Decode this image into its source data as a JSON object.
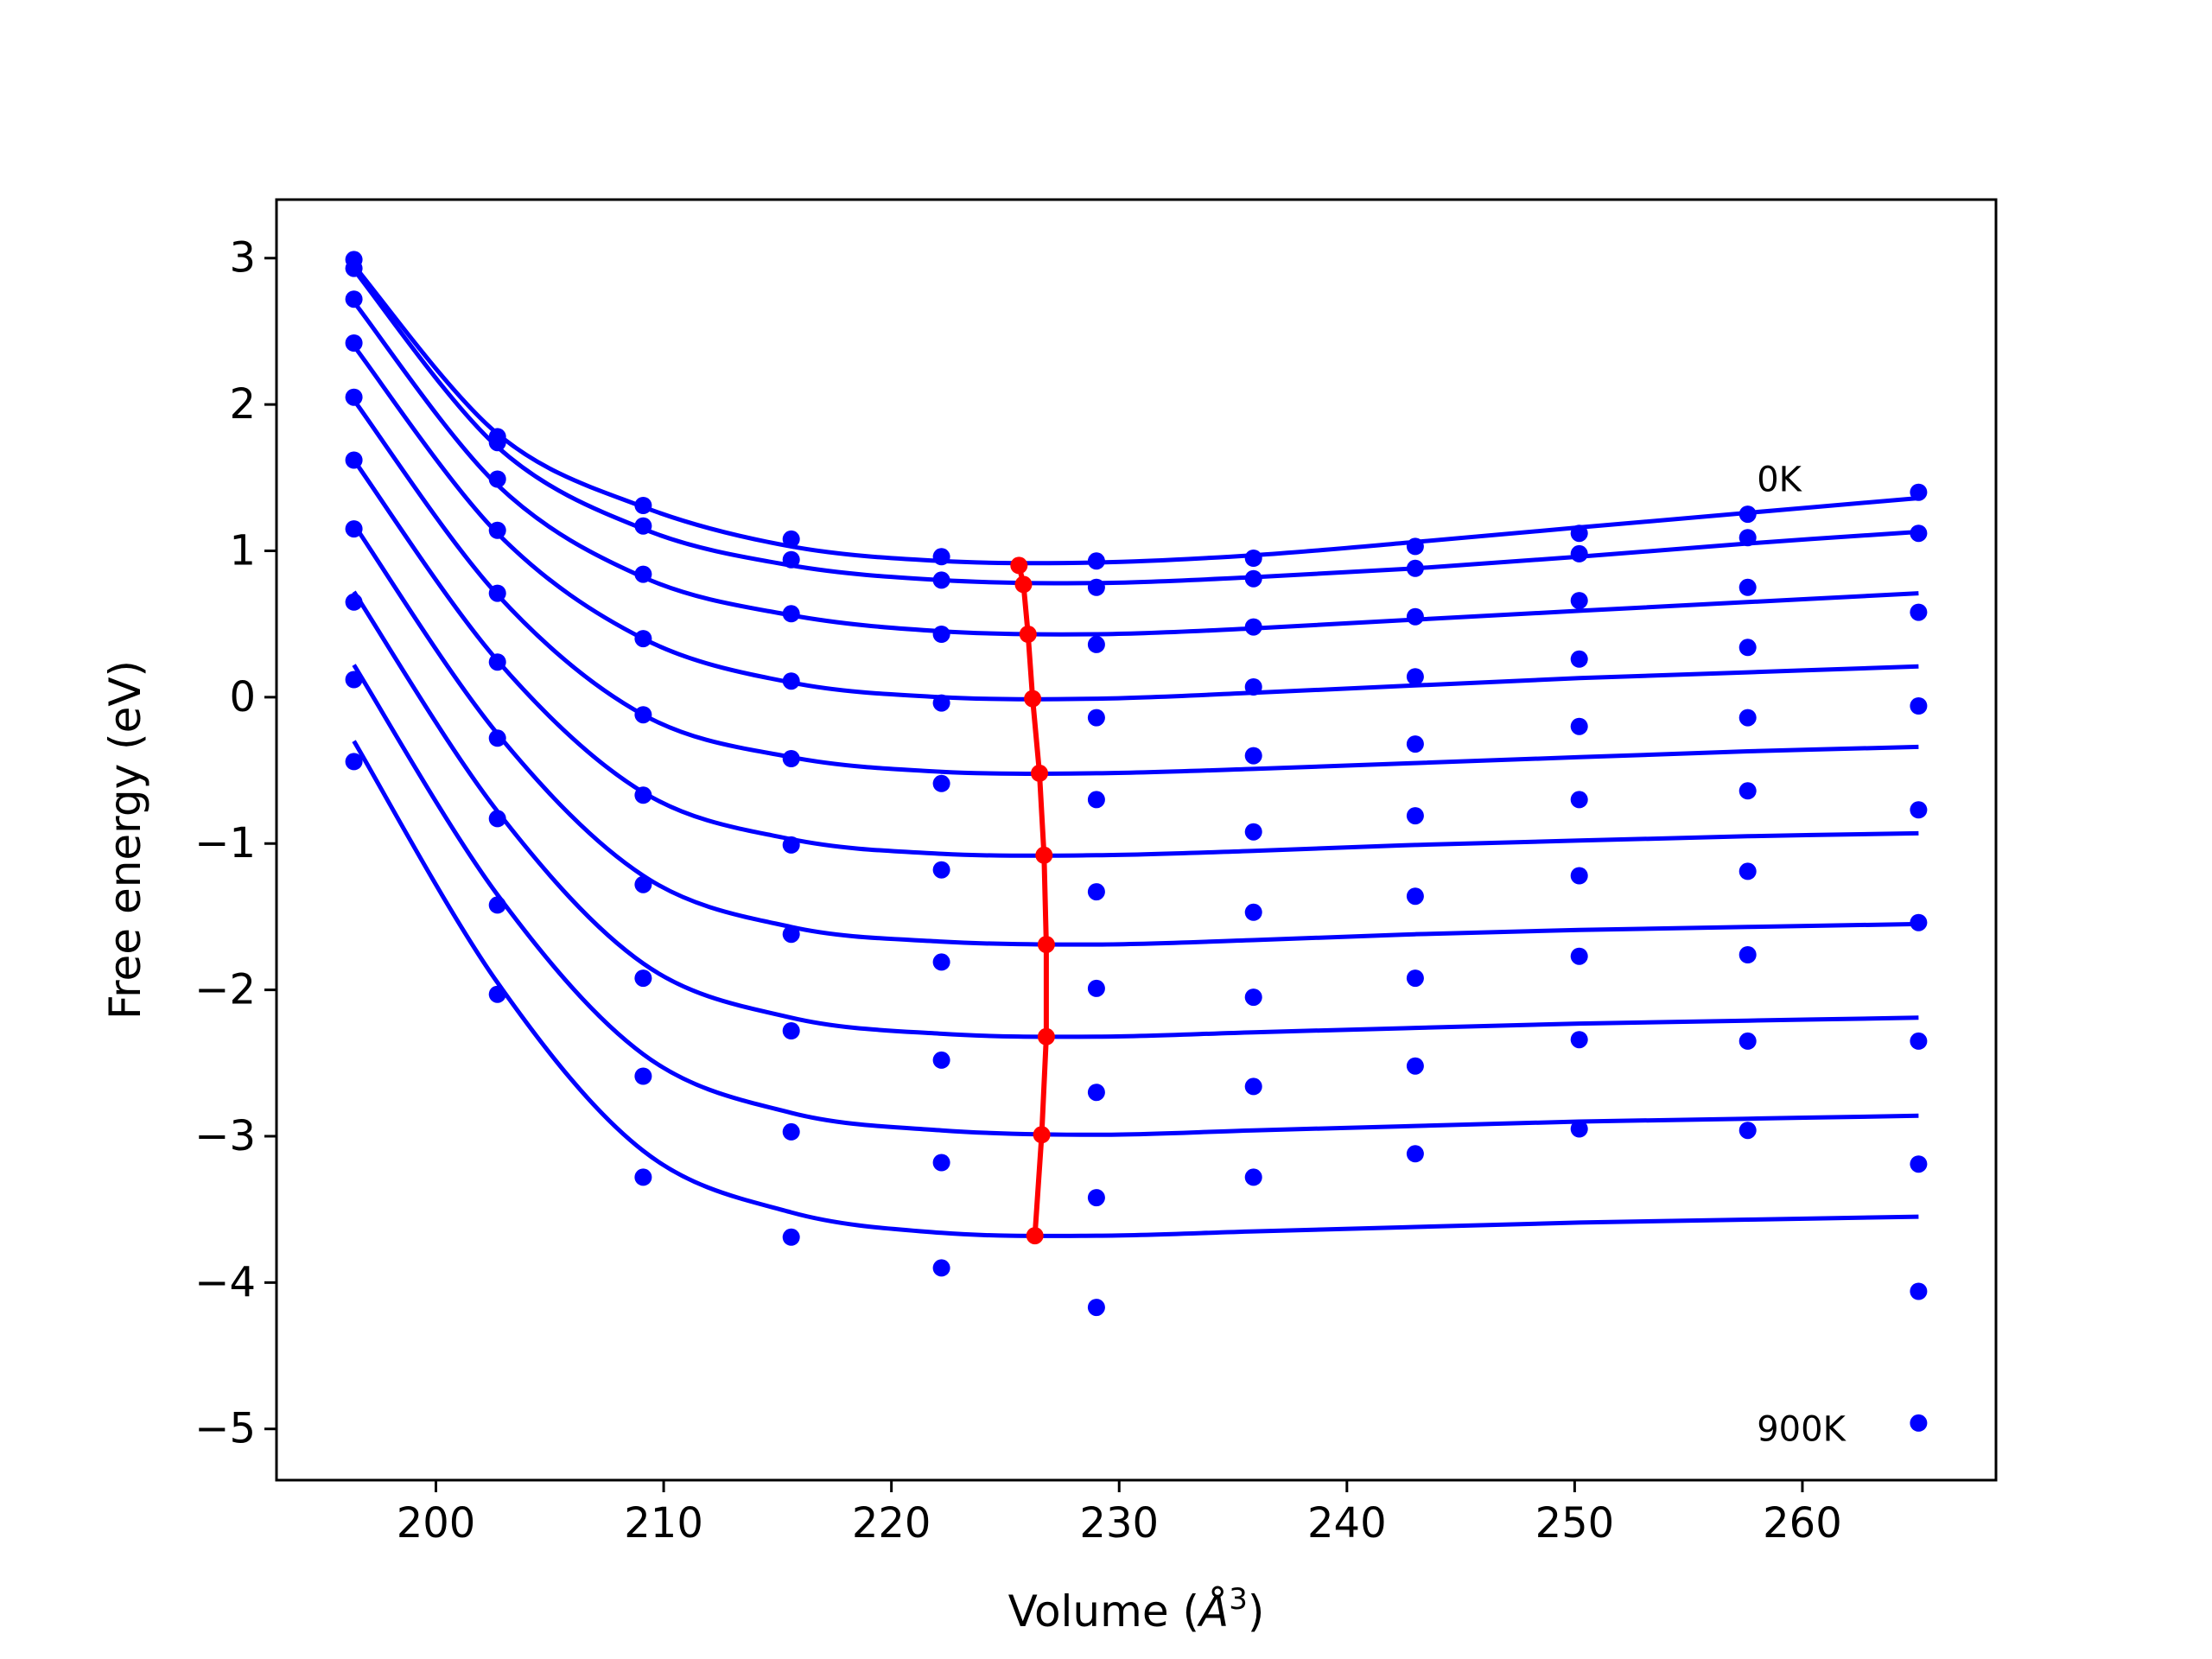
{
  "chart_data": {
    "type": "line",
    "title": "",
    "xlabel": "Volume (",
    "xlabel_symbol": "Å",
    "xlabel_sup": "3",
    "xlabel_close": ")",
    "ylabel": "Free energy (eV)",
    "xlim": [
      193.0,
      268.5
    ],
    "ylim": [
      -5.35,
      3.4
    ],
    "xticks": [
      200,
      210,
      220,
      230,
      240,
      250,
      260
    ],
    "yticks": [
      3,
      2,
      1,
      0,
      -1,
      -2,
      -3,
      -4,
      -5
    ],
    "ytick_labels": [
      "3",
      "2",
      "1",
      "0",
      "−1",
      "−2",
      "−3",
      "−4",
      "−5"
    ],
    "annotations": [
      {
        "text": "0K",
        "x": 258.0,
        "y": 1.49
      },
      {
        "text": "900K",
        "x": 258.0,
        "y": -5.0
      }
    ],
    "colors": {
      "fit": "#0000ff",
      "points": "#0000ff",
      "minima": "#ff0000"
    },
    "volumes": [
      196.4,
      202.7,
      209.1,
      215.6,
      222.2,
      229.0,
      235.9,
      243.0,
      250.2,
      257.6,
      265.1
    ],
    "points": [
      [
        2.99,
        1.78,
        1.31,
        1.08,
        0.96,
        0.93,
        0.95,
        1.03,
        1.12,
        1.25,
        1.4
      ],
      [
        2.93,
        1.74,
        1.17,
        0.94,
        0.8,
        0.75,
        0.81,
        0.88,
        0.98,
        1.09,
        1.12
      ],
      [
        2.72,
        1.49,
        0.84,
        0.57,
        0.43,
        0.36,
        0.48,
        0.55,
        0.66,
        0.75,
        0.58
      ],
      [
        2.42,
        1.14,
        0.4,
        0.11,
        -0.04,
        -0.14,
        0.07,
        0.14,
        0.26,
        0.34,
        -0.06
      ],
      [
        2.05,
        0.71,
        -0.12,
        -0.42,
        -0.59,
        -0.7,
        -0.4,
        -0.32,
        -0.2,
        -0.14,
        -0.77
      ],
      [
        1.62,
        0.24,
        -0.67,
        -1.01,
        -1.18,
        -1.33,
        -0.92,
        -0.81,
        -0.7,
        -0.64,
        -1.54
      ],
      [
        1.15,
        -0.28,
        -1.28,
        -1.62,
        -1.81,
        -1.99,
        -1.47,
        -1.36,
        -1.22,
        -1.19,
        -2.35
      ],
      [
        0.65,
        -0.83,
        -1.92,
        -2.28,
        -2.48,
        -2.7,
        -2.05,
        -1.92,
        -1.77,
        -1.76,
        -3.19
      ],
      [
        0.12,
        -1.42,
        -2.59,
        -2.97,
        -3.18,
        -3.42,
        -2.66,
        -2.52,
        -2.34,
        -2.35,
        -4.06
      ],
      [
        -0.44,
        -2.03,
        -3.28,
        -3.69,
        -3.9,
        -4.17,
        -3.28,
        -3.12,
        -2.95,
        -2.96,
        -4.96
      ]
    ],
    "series": [
      {
        "values": [
          {
            "x": 196.4,
            "y": 2.95
          },
          {
            "x": 202.7,
            "y": 1.8
          },
          {
            "x": 209.1,
            "y": 1.3
          },
          {
            "x": 215.6,
            "y": 1.03
          },
          {
            "x": 222.2,
            "y": 0.93
          },
          {
            "x": 229.0,
            "y": 0.92
          },
          {
            "x": 235.9,
            "y": 0.97
          },
          {
            "x": 243.0,
            "y": 1.06
          },
          {
            "x": 250.2,
            "y": 1.16
          },
          {
            "x": 257.6,
            "y": 1.26
          },
          {
            "x": 265.1,
            "y": 1.36
          }
        ]
      },
      {
        "values": [
          {
            "x": 196.4,
            "y": 2.92
          },
          {
            "x": 202.7,
            "y": 1.71
          },
          {
            "x": 209.1,
            "y": 1.15
          },
          {
            "x": 215.6,
            "y": 0.9
          },
          {
            "x": 222.2,
            "y": 0.8
          },
          {
            "x": 229.0,
            "y": 0.78
          },
          {
            "x": 235.9,
            "y": 0.82
          },
          {
            "x": 243.0,
            "y": 0.88
          },
          {
            "x": 250.2,
            "y": 0.96
          },
          {
            "x": 257.6,
            "y": 1.05
          },
          {
            "x": 265.1,
            "y": 1.13
          }
        ]
      },
      {
        "values": [
          {
            "x": 196.4,
            "y": 2.7
          },
          {
            "x": 202.7,
            "y": 1.45
          },
          {
            "x": 209.1,
            "y": 0.82
          },
          {
            "x": 215.6,
            "y": 0.56
          },
          {
            "x": 222.2,
            "y": 0.45
          },
          {
            "x": 229.0,
            "y": 0.43
          },
          {
            "x": 235.9,
            "y": 0.47
          },
          {
            "x": 243.0,
            "y": 0.53
          },
          {
            "x": 250.2,
            "y": 0.59
          },
          {
            "x": 257.6,
            "y": 0.65
          },
          {
            "x": 265.1,
            "y": 0.71
          }
        ]
      },
      {
        "values": [
          {
            "x": 196.4,
            "y": 2.4
          },
          {
            "x": 202.7,
            "y": 1.12
          },
          {
            "x": 209.1,
            "y": 0.4
          },
          {
            "x": 215.6,
            "y": 0.1
          },
          {
            "x": 222.2,
            "y": 0.0
          },
          {
            "x": 229.0,
            "y": -0.01
          },
          {
            "x": 235.9,
            "y": 0.03
          },
          {
            "x": 243.0,
            "y": 0.08
          },
          {
            "x": 250.2,
            "y": 0.13
          },
          {
            "x": 257.6,
            "y": 0.17
          },
          {
            "x": 265.1,
            "y": 0.21
          }
        ]
      },
      {
        "values": [
          {
            "x": 196.4,
            "y": 2.03
          },
          {
            "x": 202.7,
            "y": 0.7
          },
          {
            "x": 209.1,
            "y": -0.12
          },
          {
            "x": 215.6,
            "y": -0.41
          },
          {
            "x": 222.2,
            "y": -0.51
          },
          {
            "x": 229.0,
            "y": -0.52
          },
          {
            "x": 235.9,
            "y": -0.49
          },
          {
            "x": 243.0,
            "y": -0.45
          },
          {
            "x": 250.2,
            "y": -0.41
          },
          {
            "x": 257.6,
            "y": -0.37
          },
          {
            "x": 265.1,
            "y": -0.34
          }
        ]
      },
      {
        "values": [
          {
            "x": 196.4,
            "y": 1.62
          },
          {
            "x": 202.7,
            "y": 0.25
          },
          {
            "x": 209.1,
            "y": -0.65
          },
          {
            "x": 215.6,
            "y": -0.97
          },
          {
            "x": 222.2,
            "y": -1.07
          },
          {
            "x": 229.0,
            "y": -1.08
          },
          {
            "x": 235.9,
            "y": -1.05
          },
          {
            "x": 243.0,
            "y": -1.01
          },
          {
            "x": 250.2,
            "y": -0.98
          },
          {
            "x": 257.6,
            "y": -0.95
          },
          {
            "x": 265.1,
            "y": -0.93
          }
        ]
      },
      {
        "values": [
          {
            "x": 196.4,
            "y": 1.18
          },
          {
            "x": 202.7,
            "y": -0.25
          },
          {
            "x": 209.1,
            "y": -1.22
          },
          {
            "x": 215.6,
            "y": -1.57
          },
          {
            "x": 222.2,
            "y": -1.67
          },
          {
            "x": 229.0,
            "y": -1.69
          },
          {
            "x": 235.9,
            "y": -1.66
          },
          {
            "x": 243.0,
            "y": -1.62
          },
          {
            "x": 250.2,
            "y": -1.59
          },
          {
            "x": 257.6,
            "y": -1.57
          },
          {
            "x": 265.1,
            "y": -1.55
          }
        ]
      },
      {
        "values": [
          {
            "x": 196.4,
            "y": 0.72
          },
          {
            "x": 202.7,
            "y": -0.78
          },
          {
            "x": 209.1,
            "y": -1.82
          },
          {
            "x": 215.6,
            "y": -2.19
          },
          {
            "x": 222.2,
            "y": -2.3
          },
          {
            "x": 229.0,
            "y": -2.32
          },
          {
            "x": 235.9,
            "y": -2.29
          },
          {
            "x": 243.0,
            "y": -2.26
          },
          {
            "x": 250.2,
            "y": -2.23
          },
          {
            "x": 257.6,
            "y": -2.21
          },
          {
            "x": 265.1,
            "y": -2.19
          }
        ]
      },
      {
        "values": [
          {
            "x": 196.4,
            "y": 0.22
          },
          {
            "x": 202.7,
            "y": -1.35
          },
          {
            "x": 209.1,
            "y": -2.44
          },
          {
            "x": 215.6,
            "y": -2.84
          },
          {
            "x": 222.2,
            "y": -2.96
          },
          {
            "x": 229.0,
            "y": -2.99
          },
          {
            "x": 235.9,
            "y": -2.96
          },
          {
            "x": 243.0,
            "y": -2.93
          },
          {
            "x": 250.2,
            "y": -2.9
          },
          {
            "x": 257.6,
            "y": -2.88
          },
          {
            "x": 265.1,
            "y": -2.86
          }
        ]
      },
      {
        "values": [
          {
            "x": 196.4,
            "y": -0.3
          },
          {
            "x": 202.7,
            "y": -1.95
          },
          {
            "x": 209.1,
            "y": -3.1
          },
          {
            "x": 215.6,
            "y": -3.52
          },
          {
            "x": 222.2,
            "y": -3.66
          },
          {
            "x": 229.0,
            "y": -3.68
          },
          {
            "x": 235.9,
            "y": -3.65
          },
          {
            "x": 243.0,
            "y": -3.62
          },
          {
            "x": 250.2,
            "y": -3.59
          },
          {
            "x": 257.6,
            "y": -3.57
          },
          {
            "x": 265.1,
            "y": -3.55
          }
        ]
      }
    ],
    "minima": [
      {
        "x": 225.6,
        "y": 0.9
      },
      {
        "x": 225.8,
        "y": 0.77
      },
      {
        "x": 226.0,
        "y": 0.43
      },
      {
        "x": 226.2,
        "y": -0.01
      },
      {
        "x": 226.5,
        "y": -0.52
      },
      {
        "x": 226.7,
        "y": -1.08
      },
      {
        "x": 226.8,
        "y": -1.69
      },
      {
        "x": 226.8,
        "y": -2.32
      },
      {
        "x": 226.6,
        "y": -2.99
      },
      {
        "x": 226.3,
        "y": -3.68
      }
    ]
  }
}
